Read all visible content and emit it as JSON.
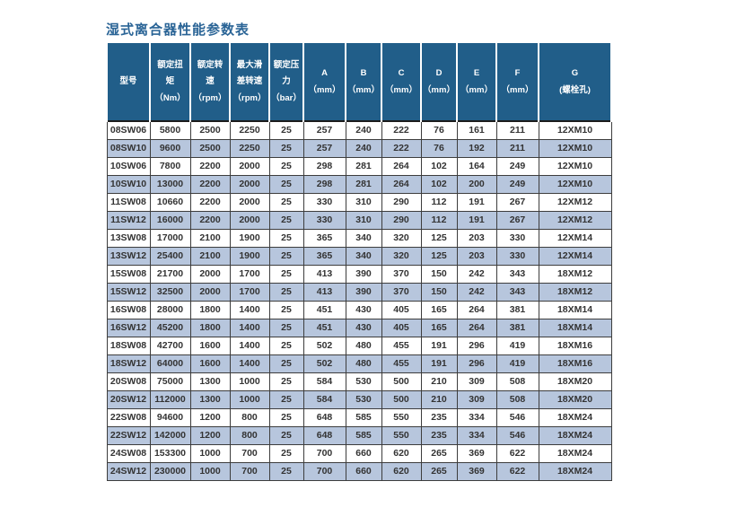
{
  "title": "湿式离合器性能参数表",
  "colors": {
    "header_bg": "#215e89",
    "row_alt_bg": "#b7c6dd",
    "title_color": "#2a6496",
    "grid_line": "#3d3d3d"
  },
  "table": {
    "headers": [
      [
        "型号"
      ],
      [
        "额定扭",
        "矩",
        "（Nm）"
      ],
      [
        "额定转",
        "速",
        "（rpm）"
      ],
      [
        "最大滑",
        "差转速",
        "（rpm）"
      ],
      [
        "额定压",
        "力",
        "（bar）"
      ],
      [
        "A",
        "（mm）"
      ],
      [
        "B",
        "（mm）"
      ],
      [
        "C",
        "（mm）"
      ],
      [
        "D",
        "（mm）"
      ],
      [
        "E",
        "（mm）"
      ],
      [
        "F",
        "（mm）"
      ],
      [
        "G",
        "(螺栓孔)"
      ]
    ],
    "rows": [
      [
        "08SW06",
        "5800",
        "2500",
        "2250",
        "25",
        "257",
        "240",
        "222",
        "76",
        "161",
        "211",
        "12XM10"
      ],
      [
        "08SW10",
        "9600",
        "2500",
        "2250",
        "25",
        "257",
        "240",
        "222",
        "76",
        "192",
        "211",
        "12XM10"
      ],
      [
        "10SW06",
        "7800",
        "2200",
        "2000",
        "25",
        "298",
        "281",
        "264",
        "102",
        "164",
        "249",
        "12XM10"
      ],
      [
        "10SW10",
        "13000",
        "2200",
        "2000",
        "25",
        "298",
        "281",
        "264",
        "102",
        "200",
        "249",
        "12XM10"
      ],
      [
        "11SW08",
        "10660",
        "2200",
        "2000",
        "25",
        "330",
        "310",
        "290",
        "112",
        "191",
        "267",
        "12XM12"
      ],
      [
        "11SW12",
        "16000",
        "2200",
        "2000",
        "25",
        "330",
        "310",
        "290",
        "112",
        "191",
        "267",
        "12XM12"
      ],
      [
        "13SW08",
        "17000",
        "2100",
        "1900",
        "25",
        "365",
        "340",
        "320",
        "125",
        "203",
        "330",
        "12XM14"
      ],
      [
        "13SW12",
        "25400",
        "2100",
        "1900",
        "25",
        "365",
        "340",
        "320",
        "125",
        "203",
        "330",
        "12XM14"
      ],
      [
        "15SW08",
        "21700",
        "2000",
        "1700",
        "25",
        "413",
        "390",
        "370",
        "150",
        "242",
        "343",
        "18XM12"
      ],
      [
        "15SW12",
        "32500",
        "2000",
        "1700",
        "25",
        "413",
        "390",
        "370",
        "150",
        "242",
        "343",
        "18XM12"
      ],
      [
        "16SW08",
        "28000",
        "1800",
        "1400",
        "25",
        "451",
        "430",
        "405",
        "165",
        "264",
        "381",
        "18XM14"
      ],
      [
        "16SW12",
        "45200",
        "1800",
        "1400",
        "25",
        "451",
        "430",
        "405",
        "165",
        "264",
        "381",
        "18XM14"
      ],
      [
        "18SW08",
        "42700",
        "1600",
        "1400",
        "25",
        "502",
        "480",
        "455",
        "191",
        "296",
        "419",
        "18XM16"
      ],
      [
        "18SW12",
        "64000",
        "1600",
        "1400",
        "25",
        "502",
        "480",
        "455",
        "191",
        "296",
        "419",
        "18XM16"
      ],
      [
        "20SW08",
        "75000",
        "1300",
        "1000",
        "25",
        "584",
        "530",
        "500",
        "210",
        "309",
        "508",
        "18XM20"
      ],
      [
        "20SW12",
        "112000",
        "1300",
        "1000",
        "25",
        "584",
        "530",
        "500",
        "210",
        "309",
        "508",
        "18XM20"
      ],
      [
        "22SW08",
        "94600",
        "1200",
        "800",
        "25",
        "648",
        "585",
        "550",
        "235",
        "334",
        "546",
        "18XM24"
      ],
      [
        "22SW12",
        "142000",
        "1200",
        "800",
        "25",
        "648",
        "585",
        "550",
        "235",
        "334",
        "546",
        "18XM24"
      ],
      [
        "24SW08",
        "153300",
        "1000",
        "700",
        "25",
        "700",
        "660",
        "620",
        "265",
        "369",
        "622",
        "18XM24"
      ],
      [
        "24SW12",
        "230000",
        "1000",
        "700",
        "25",
        "700",
        "660",
        "620",
        "265",
        "369",
        "622",
        "18XM24"
      ]
    ]
  }
}
